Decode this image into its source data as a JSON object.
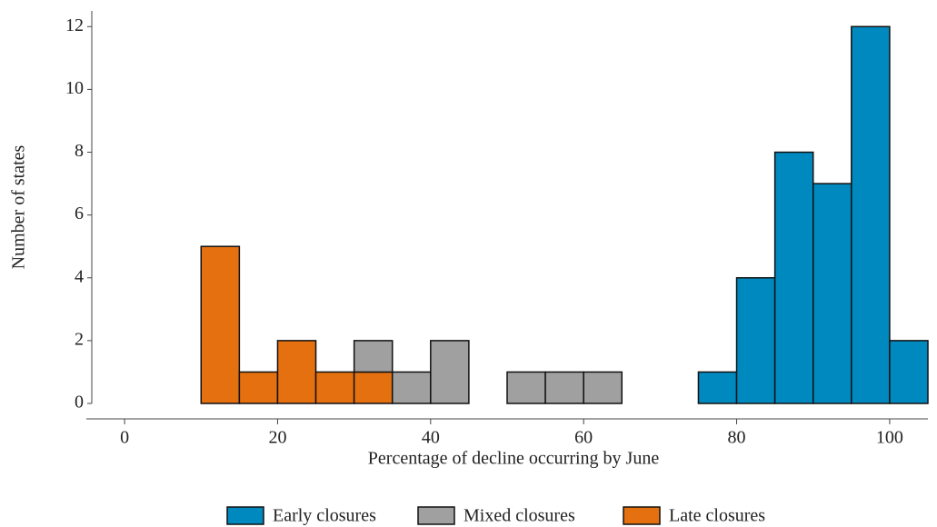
{
  "chart_data": {
    "type": "histogram",
    "xlabel": "Percentage of decline occurring by June",
    "ylabel": "Number of states",
    "bins": [
      10,
      15,
      20,
      25,
      30,
      35,
      40,
      45,
      50,
      55,
      60,
      65,
      70,
      75,
      80,
      85,
      90,
      95,
      100,
      105
    ],
    "series": [
      {
        "name": "Early closures",
        "color": "#0089bf",
        "values": [
          0,
          0,
          0,
          0,
          0,
          0,
          0,
          0,
          0,
          0,
          0,
          0,
          0,
          1,
          4,
          8,
          7,
          12,
          2
        ]
      },
      {
        "name": "Mixed closures",
        "color": "#a0a0a0",
        "values": [
          0,
          0,
          0,
          0,
          1,
          1,
          2,
          0,
          1,
          1,
          1,
          0,
          0,
          0,
          0,
          0,
          0,
          0,
          0
        ]
      },
      {
        "name": "Late closures",
        "color": "#e5700f",
        "values": [
          5,
          1,
          2,
          1,
          1,
          0,
          0,
          0,
          0,
          0,
          0,
          0,
          0,
          0,
          0,
          0,
          0,
          0,
          0
        ]
      }
    ],
    "stacked": true,
    "xlim": [
      -5,
      105
    ],
    "xticks": [
      0,
      20,
      40,
      60,
      80,
      100
    ],
    "ylim": [
      0,
      12.5
    ],
    "yticks": [
      0,
      2,
      4,
      6,
      8,
      10,
      12
    ]
  }
}
